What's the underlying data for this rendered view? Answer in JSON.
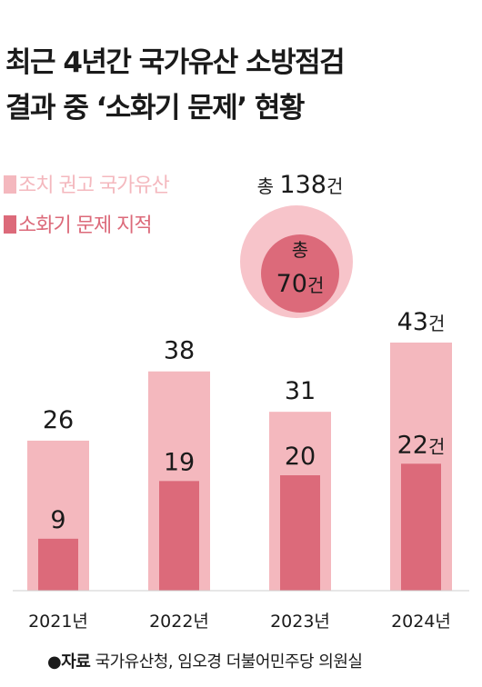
{
  "title": {
    "line1": "최근 4년간 국가유산 소방점검",
    "line2": "결과 중 ‘소화기 문제’ 현황"
  },
  "legend": {
    "recommended": "조치 권고 국가유산",
    "extinguisher": "소화기 문제 지적"
  },
  "totals": {
    "outer_prefix": "총",
    "outer_value": "138",
    "outer_unit": "건",
    "inner_prefix": "총",
    "inner_value": "70",
    "inner_unit": "건"
  },
  "colors": {
    "recommended": "#f4b8be",
    "extinguisher": "#dc6a7a",
    "total_outer": "#f7c4ca",
    "total_inner": "#dc6a7a"
  },
  "chart_data": {
    "type": "bar",
    "categories": [
      "2021년",
      "2022년",
      "2023년",
      "2024년"
    ],
    "series": [
      {
        "name": "조치 권고 국가유산",
        "values": [
          26,
          38,
          31,
          43
        ]
      },
      {
        "name": "소화기 문제 지적",
        "values": [
          9,
          19,
          20,
          22
        ]
      }
    ],
    "value_labels": {
      "recommended": [
        "26",
        "38",
        "31",
        "43건"
      ],
      "extinguisher": [
        "9",
        "19",
        "20",
        "22건"
      ]
    },
    "totals": {
      "recommended": 138,
      "extinguisher": 70
    },
    "ylim": [
      0,
      50
    ],
    "grid": false,
    "legend_position": "top-left"
  },
  "source": {
    "label": "●자료",
    "text": "국가유산청, 임오경 더불어민주당 의원실"
  }
}
